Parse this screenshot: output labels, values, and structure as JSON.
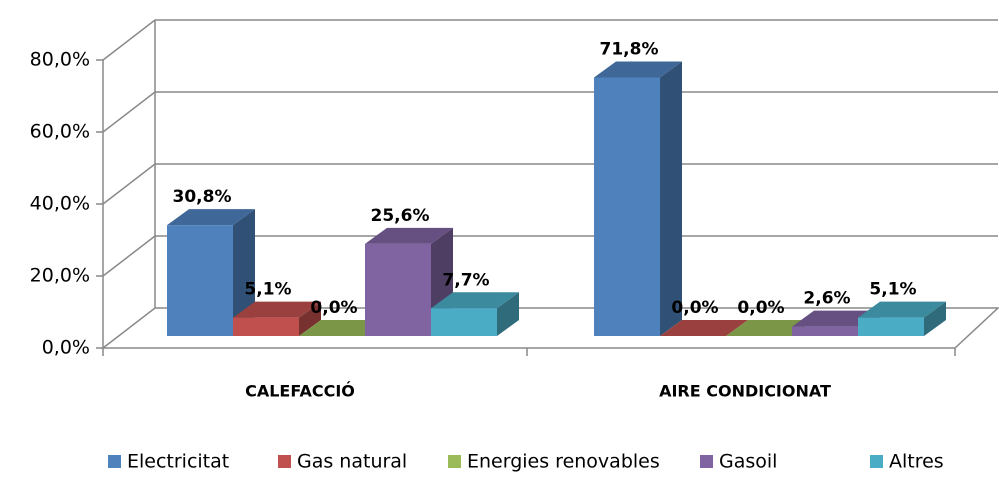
{
  "chart_data": {
    "type": "bar3d",
    "categories": [
      "CALEFACCIÓ",
      "AIRE CONDICIONAT"
    ],
    "series": [
      {
        "name": "Electricitat",
        "color": "#4f81bd",
        "values": [
          30.8,
          71.8
        ],
        "value_labels": [
          "30,8%",
          "71,8%"
        ]
      },
      {
        "name": "Gas natural",
        "color": "#c0504d",
        "values": [
          5.1,
          0.0
        ],
        "value_labels": [
          "5,1%",
          "0,0%"
        ]
      },
      {
        "name": "Energies renovables",
        "color": "#9bbb59",
        "values": [
          0.0,
          0.0
        ],
        "value_labels": [
          "0,0%",
          "0,0%"
        ]
      },
      {
        "name": "Gasoil",
        "color": "#8064a2",
        "values": [
          25.6,
          2.6
        ],
        "value_labels": [
          "25,6%",
          "2,6%"
        ]
      },
      {
        "name": "Altres",
        "color": "#4bacc6",
        "values": [
          7.7,
          5.1
        ],
        "value_labels": [
          "7,7%",
          "5,1%"
        ]
      }
    ],
    "ylim": [
      0,
      80
    ],
    "yticks": [
      {
        "value": 0,
        "label": "0,0%"
      },
      {
        "value": 20,
        "label": "20,0%"
      },
      {
        "value": 40,
        "label": "40,0%"
      },
      {
        "value": 60,
        "label": "60,0%"
      },
      {
        "value": 80,
        "label": "80,0%"
      }
    ],
    "grid": true,
    "legend": "bottom"
  }
}
